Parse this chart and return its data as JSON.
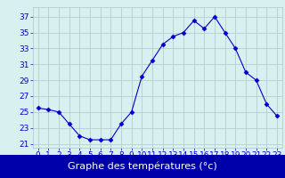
{
  "hours": [
    0,
    1,
    2,
    3,
    4,
    5,
    6,
    7,
    8,
    9,
    10,
    11,
    12,
    13,
    14,
    15,
    16,
    17,
    18,
    19,
    20,
    21,
    22,
    23
  ],
  "temps": [
    25.5,
    25.3,
    25.0,
    23.5,
    22.0,
    21.5,
    21.5,
    21.5,
    23.5,
    25.0,
    29.5,
    31.5,
    33.5,
    34.5,
    35.0,
    36.5,
    35.5,
    37.0,
    35.0,
    33.0,
    30.0,
    29.0,
    26.0,
    24.5
  ],
  "line_color": "#0000cc",
  "marker": "D",
  "marker_size": 2.5,
  "bg_color": "#d8f0f0",
  "grid_color": "#aec8c8",
  "xlabel": "Graphe des températures (°c)",
  "xlabel_fontsize": 8,
  "ylabel_ticks": [
    21,
    23,
    25,
    27,
    29,
    31,
    33,
    35,
    37
  ],
  "xlim": [
    -0.5,
    23.5
  ],
  "ylim": [
    20.5,
    38.2
  ],
  "tick_color": "#0000cc",
  "tick_fontsize": 6.5,
  "xlabel_bg": "#0000aa",
  "xlabel_fg": "#ffffff"
}
